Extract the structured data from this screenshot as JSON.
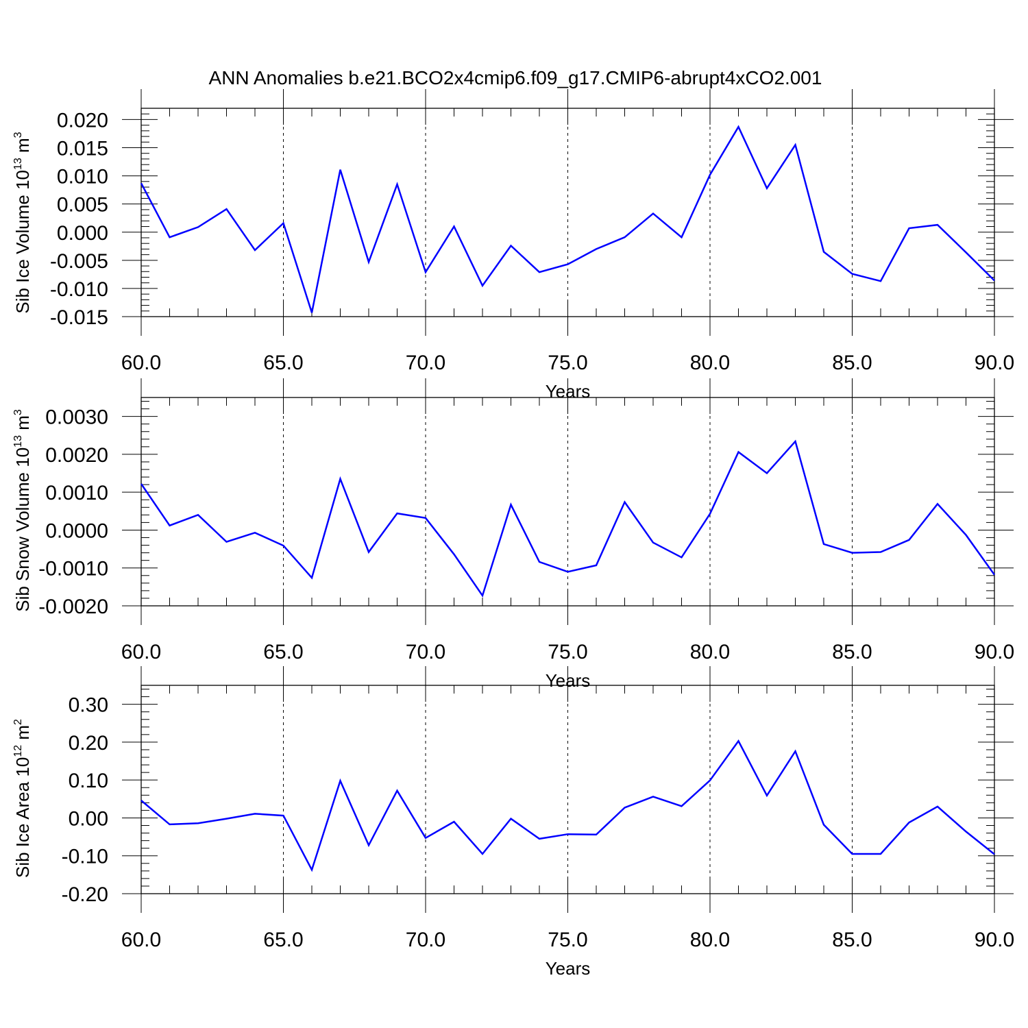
{
  "title": "ANN Anomalies b.e21.BCO2x4cmip6.f09_g17.CMIP6-abrupt4xCO2.001",
  "colors": {
    "line": "#0000ff",
    "axis": "#000000",
    "grid": "#000000"
  },
  "chart_data": [
    {
      "type": "line",
      "ylabel": "Sib Ice Volume 10",
      "ylabel_exp": "13",
      "ylabel_unit": " m",
      "ylabel_unit_exp": "3",
      "xlabel": "Years",
      "xlim": [
        60,
        90
      ],
      "ylim": [
        -0.015,
        0.022
      ],
      "xticks": [
        60,
        65,
        70,
        75,
        80,
        85,
        90
      ],
      "xtick_labels": [
        "60.0",
        "65.0",
        "70.0",
        "75.0",
        "80.0",
        "85.0",
        "90.0"
      ],
      "yticks": [
        -0.015,
        -0.01,
        -0.005,
        0.0,
        0.005,
        0.01,
        0.015,
        0.02
      ],
      "ytick_labels": [
        "-0.015",
        "-0.010",
        "-0.005",
        "0.000",
        "0.005",
        "0.010",
        "0.015",
        "0.020"
      ],
      "yminor_step": 0.001,
      "grid": "vertical dashed at major x ticks",
      "x": [
        60,
        61,
        62,
        63,
        64,
        65,
        66,
        67,
        68,
        69,
        70,
        71,
        72,
        73,
        74,
        75,
        76,
        77,
        78,
        79,
        80,
        81,
        82,
        83,
        84,
        85,
        86,
        87,
        88,
        89,
        90
      ],
      "values": [
        0.0087,
        -0.0009,
        0.0009,
        0.0041,
        -0.0032,
        0.0016,
        -0.0143,
        0.0111,
        -0.0053,
        0.0085,
        -0.0071,
        0.001,
        -0.0095,
        -0.0024,
        -0.0071,
        -0.0057,
        -0.003,
        -0.0009,
        0.0033,
        -0.0009,
        0.0102,
        0.0187,
        0.0078,
        0.0155,
        -0.0035,
        -0.0074,
        -0.0087,
        0.0007,
        0.0013,
        -0.0036,
        -0.0086
      ]
    },
    {
      "type": "line",
      "ylabel": "Sib Snow Volume 10",
      "ylabel_exp": "13",
      "ylabel_unit": " m",
      "ylabel_unit_exp": "3",
      "xlabel": "Years",
      "xlim": [
        60,
        90
      ],
      "ylim": [
        -0.002,
        0.0035
      ],
      "xticks": [
        60,
        65,
        70,
        75,
        80,
        85,
        90
      ],
      "xtick_labels": [
        "60.0",
        "65.0",
        "70.0",
        "75.0",
        "80.0",
        "85.0",
        "90.0"
      ],
      "yticks": [
        -0.002,
        -0.001,
        0.0,
        0.001,
        0.002,
        0.003
      ],
      "ytick_labels": [
        "-0.0020",
        "-0.0010",
        "0.0000",
        "0.0010",
        "0.0020",
        "0.0030"
      ],
      "yminor_step": 0.0002,
      "grid": "vertical dashed at major x ticks",
      "x": [
        60,
        61,
        62,
        63,
        64,
        65,
        66,
        67,
        68,
        69,
        70,
        71,
        72,
        73,
        74,
        75,
        76,
        77,
        78,
        79,
        80,
        81,
        82,
        83,
        84,
        85,
        86,
        87,
        88,
        89,
        90
      ],
      "values": [
        0.00122,
        0.00012,
        0.0004,
        -0.00031,
        -7e-05,
        -0.00041,
        -0.00126,
        0.00135,
        -0.00058,
        0.00044,
        0.00032,
        -0.00064,
        -0.00173,
        0.00067,
        -0.00084,
        -0.0011,
        -0.00093,
        0.00074,
        -0.00033,
        -0.00072,
        0.00043,
        0.00206,
        0.0015,
        0.00234,
        -0.00037,
        -0.0006,
        -0.00058,
        -0.00026,
        0.00069,
        -0.00013,
        -0.00118
      ]
    },
    {
      "type": "line",
      "ylabel": "Sib Ice Area 10",
      "ylabel_exp": "12",
      "ylabel_unit": " m",
      "ylabel_unit_exp": "2",
      "xlabel": "Years",
      "xlim": [
        60,
        90
      ],
      "ylim": [
        -0.2,
        0.35
      ],
      "xticks": [
        60,
        65,
        70,
        75,
        80,
        85,
        90
      ],
      "xtick_labels": [
        "60.0",
        "65.0",
        "70.0",
        "75.0",
        "80.0",
        "85.0",
        "90.0"
      ],
      "yticks": [
        -0.2,
        -0.1,
        0.0,
        0.1,
        0.2,
        0.3
      ],
      "ytick_labels": [
        "-0.20",
        "-0.10",
        "0.00",
        "0.10",
        "0.20",
        "0.30"
      ],
      "yminor_step": 0.02,
      "grid": "vertical dashed at major x ticks",
      "x": [
        60,
        61,
        62,
        63,
        64,
        65,
        66,
        67,
        68,
        69,
        70,
        71,
        72,
        73,
        74,
        75,
        76,
        77,
        78,
        79,
        80,
        81,
        82,
        83,
        84,
        85,
        86,
        87,
        88,
        89,
        90
      ],
      "values": [
        0.046,
        -0.017,
        -0.014,
        -0.002,
        0.011,
        0.006,
        -0.137,
        0.098,
        -0.072,
        0.072,
        -0.053,
        -0.01,
        -0.095,
        -0.002,
        -0.055,
        -0.043,
        -0.044,
        0.027,
        0.056,
        0.031,
        0.099,
        0.203,
        0.059,
        0.176,
        -0.018,
        -0.095,
        -0.095,
        -0.012,
        0.03,
        -0.036,
        -0.096
      ]
    }
  ]
}
